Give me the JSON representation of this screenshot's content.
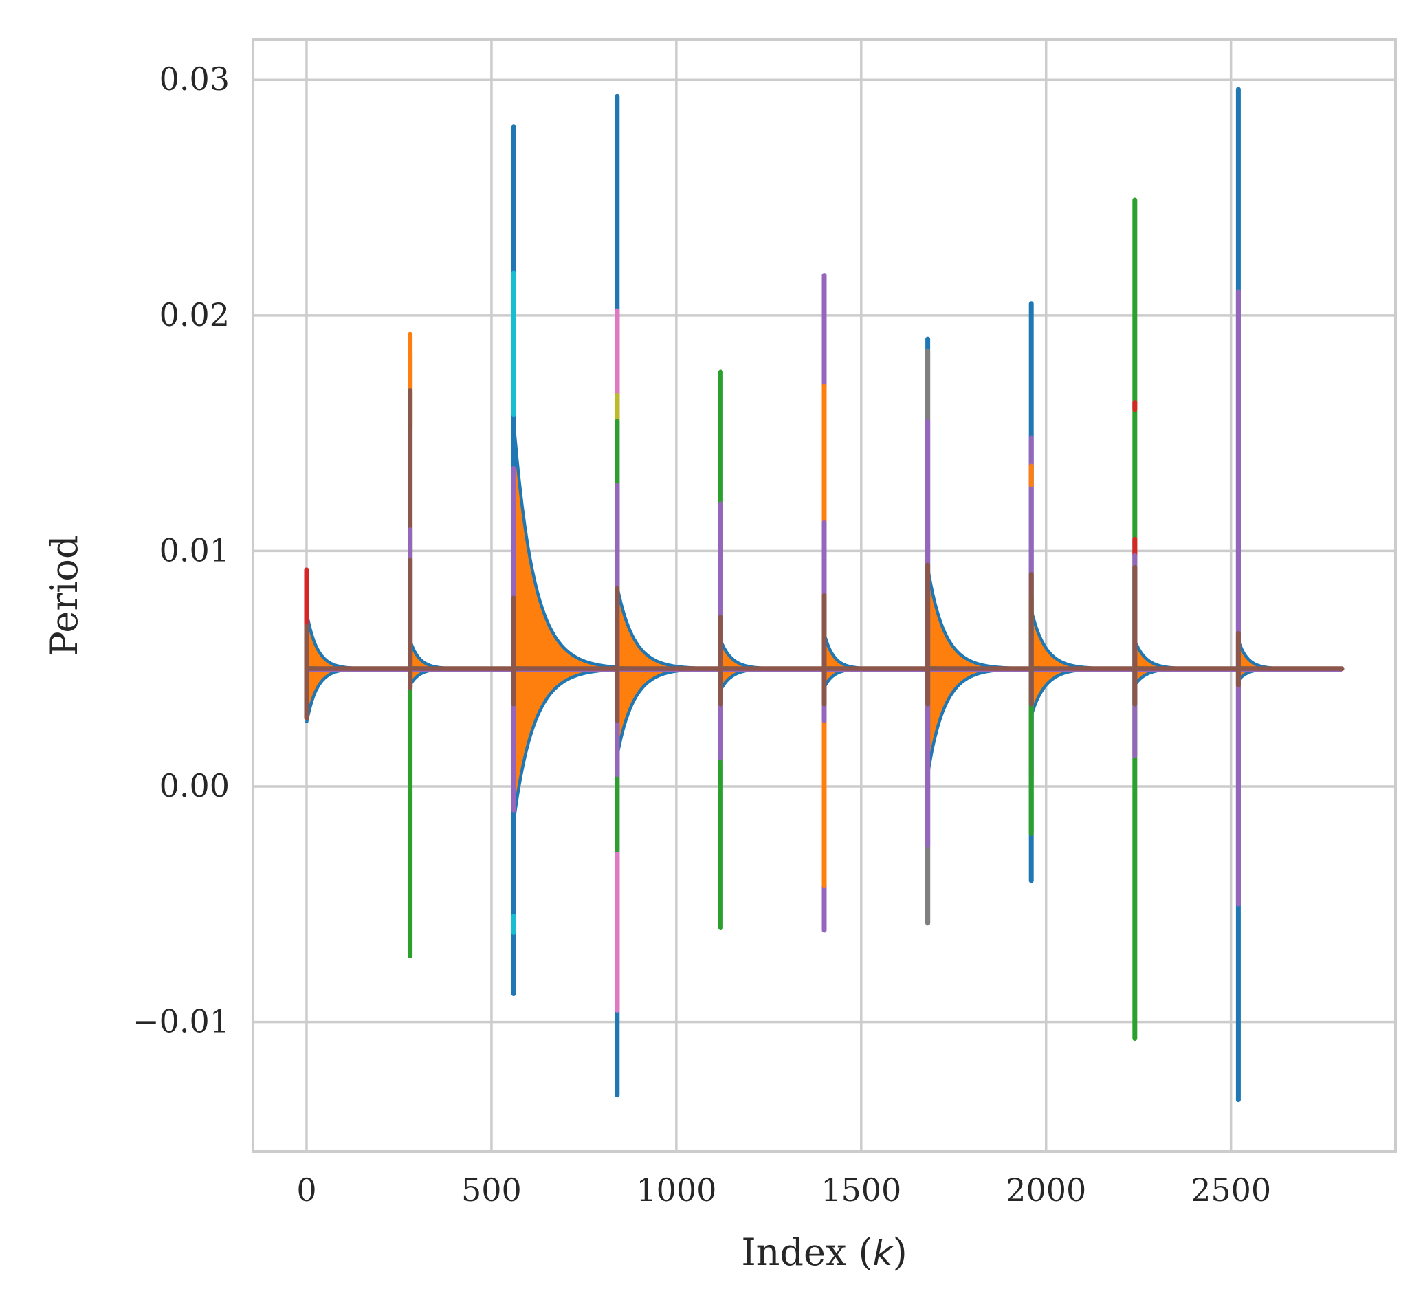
{
  "chart_data": {
    "type": "line",
    "title": "",
    "xlabel": "Index  (k)",
    "xlabel_parts": {
      "text": "Index  (",
      "var": "k",
      "close": ")"
    },
    "ylabel": "Period",
    "xlim": [
      -145,
      2945
    ],
    "ylim": [
      -0.0155,
      0.0317
    ],
    "xticks": [
      0,
      500,
      1000,
      1500,
      2000,
      2500
    ],
    "xtick_labels": [
      "0",
      "500",
      "1000",
      "1500",
      "2000",
      "2500"
    ],
    "yticks": [
      -0.01,
      0.0,
      0.01,
      0.02,
      0.03
    ],
    "ytick_labels": [
      "−0.01",
      "0.00",
      "0.01",
      "0.02",
      "0.03"
    ],
    "grid": true,
    "baseline": 0.005,
    "x_end": 2800,
    "segment_length": 280,
    "colors": {
      "blue": "#1f77b4",
      "orange": "#ff7f0e",
      "green": "#2ca02c",
      "red": "#d62728",
      "purple": "#9467bd",
      "brown": "#8c564b",
      "pink": "#e377c2",
      "gray": "#7f7f7f",
      "olive": "#bcbd22",
      "cyan": "#17becf",
      "grid": "#cccccc"
    },
    "envelopes": [
      {
        "start": 0,
        "upper": 0.0074,
        "lower": 0.0027,
        "decay": 28
      },
      {
        "start": 280,
        "upper": 0.0062,
        "lower": 0.0043,
        "decay": 25
      },
      {
        "start": 560,
        "upper": 0.0155,
        "lower": -0.0015,
        "decay": 55
      },
      {
        "start": 840,
        "upper": 0.0085,
        "lower": 0.0013,
        "decay": 45
      },
      {
        "start": 1120,
        "upper": 0.0062,
        "lower": 0.0041,
        "decay": 30
      },
      {
        "start": 1400,
        "upper": 0.0065,
        "lower": 0.0042,
        "decay": 25
      },
      {
        "start": 1680,
        "upper": 0.0093,
        "lower": 0.0005,
        "decay": 45
      },
      {
        "start": 1960,
        "upper": 0.0075,
        "lower": 0.003,
        "decay": 38
      },
      {
        "start": 2240,
        "upper": 0.0062,
        "lower": 0.0043,
        "decay": 30
      },
      {
        "start": 2520,
        "upper": 0.0062,
        "lower": 0.0045,
        "decay": 25
      }
    ],
    "spikes": [
      {
        "x": 0,
        "segments": [
          {
            "y1": 0.0035,
            "y2": 0.0092,
            "color": "red"
          },
          {
            "y1": 0.0029,
            "y2": 0.0068,
            "color": "brown"
          }
        ]
      },
      {
        "x": 280,
        "segments": [
          {
            "y1": -0.0072,
            "y2": 0.0184,
            "color": "green"
          },
          {
            "y1": 0.0152,
            "y2": 0.0192,
            "color": "orange"
          },
          {
            "y1": 0.0042,
            "y2": 0.0168,
            "color": "brown"
          },
          {
            "y1": 0.0042,
            "y2": 0.0109,
            "color": "purple"
          },
          {
            "y1": 0.0042,
            "y2": 0.0096,
            "color": "brown"
          }
        ]
      },
      {
        "x": 560,
        "segments": [
          {
            "y1": -0.0088,
            "y2": 0.028,
            "color": "blue"
          },
          {
            "y1": 0.0158,
            "y2": 0.0218,
            "color": "cyan"
          },
          {
            "y1": -0.0062,
            "y2": -0.0055,
            "color": "cyan"
          },
          {
            "y1": -0.001,
            "y2": 0.0135,
            "color": "purple"
          },
          {
            "y1": 0.0035,
            "y2": 0.008,
            "color": "brown"
          }
        ]
      },
      {
        "x": 840,
        "segments": [
          {
            "y1": -0.0131,
            "y2": 0.0293,
            "color": "blue"
          },
          {
            "y1": -0.0095,
            "y2": 0.0202,
            "color": "pink"
          },
          {
            "y1": 0.0155,
            "y2": 0.0166,
            "color": "olive"
          },
          {
            "y1": -0.0027,
            "y2": 0.0155,
            "color": "green"
          },
          {
            "y1": 0.0005,
            "y2": 0.0128,
            "color": "purple"
          },
          {
            "y1": 0.0028,
            "y2": 0.0084,
            "color": "brown"
          }
        ]
      },
      {
        "x": 1120,
        "segments": [
          {
            "y1": -0.006,
            "y2": 0.0176,
            "color": "green"
          },
          {
            "y1": 0.0012,
            "y2": 0.012,
            "color": "purple"
          },
          {
            "y1": 0.0035,
            "y2": 0.0072,
            "color": "brown"
          }
        ]
      },
      {
        "x": 1400,
        "segments": [
          {
            "y1": -0.0061,
            "y2": 0.0217,
            "color": "purple"
          },
          {
            "y1": -0.0042,
            "y2": 0.017,
            "color": "orange"
          },
          {
            "y1": 0.0028,
            "y2": 0.0112,
            "color": "purple"
          },
          {
            "y1": 0.0035,
            "y2": 0.0081,
            "color": "brown"
          }
        ]
      },
      {
        "x": 1680,
        "segments": [
          {
            "y1": -0.0058,
            "y2": 0.019,
            "color": "blue"
          },
          {
            "y1": -0.0058,
            "y2": 0.0185,
            "color": "gray"
          },
          {
            "y1": -0.0025,
            "y2": 0.0155,
            "color": "purple"
          },
          {
            "y1": 0.0035,
            "y2": 0.0094,
            "color": "brown"
          }
        ]
      },
      {
        "x": 1960,
        "segments": [
          {
            "y1": -0.004,
            "y2": 0.0205,
            "color": "blue"
          },
          {
            "y1": 0.0005,
            "y2": 0.0148,
            "color": "purple"
          },
          {
            "y1": 0.0128,
            "y2": 0.0136,
            "color": "orange"
          },
          {
            "y1": -0.002,
            "y2": 0.008,
            "color": "green"
          },
          {
            "y1": 0.0035,
            "y2": 0.009,
            "color": "brown"
          }
        ]
      },
      {
        "x": 2240,
        "segments": [
          {
            "y1": -0.0107,
            "y2": 0.0249,
            "color": "green"
          },
          {
            "y1": 0.016,
            "y2": 0.0163,
            "color": "red"
          },
          {
            "y1": 0.0098,
            "y2": 0.0105,
            "color": "red"
          },
          {
            "y1": 0.0013,
            "y2": 0.0098,
            "color": "purple"
          },
          {
            "y1": 0.0035,
            "y2": 0.0093,
            "color": "brown"
          }
        ]
      },
      {
        "x": 2520,
        "segments": [
          {
            "y1": -0.0133,
            "y2": 0.0296,
            "color": "blue"
          },
          {
            "y1": -0.005,
            "y2": 0.021,
            "color": "purple"
          },
          {
            "y1": 0.0043,
            "y2": 0.0065,
            "color": "brown"
          }
        ]
      }
    ]
  }
}
